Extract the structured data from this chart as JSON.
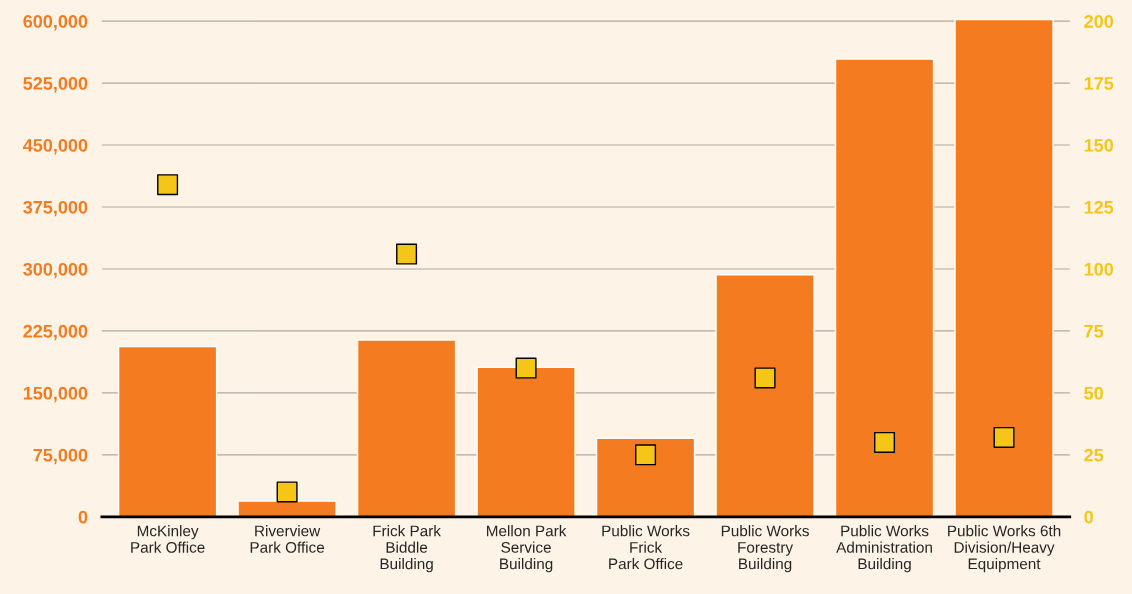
{
  "chart_data": {
    "type": "bar",
    "categories": [
      "McKinley\nPark Office",
      "Riverview\nPark Office",
      "Frick Park\nBiddle\nBuilding",
      "Mellon Park\nService\nBuilding",
      "Public Works\nFrick\nPark Office",
      "Public Works\nForestry\nBuilding",
      "Public Works\nAdministration\nBuilding",
      "Public Works 6th\nDivision/Heavy\nEquipment"
    ],
    "series": [
      {
        "color": "#f47b20",
        "values": [
          206000,
          19000,
          214000,
          181000,
          95000,
          293000,
          554000,
          602000
        ]
      },
      {
        "type": "scatter",
        "axis": "y2",
        "color": "#f5c518",
        "values": [
          134,
          10,
          106,
          60,
          25,
          56,
          30,
          32
        ]
      }
    ],
    "ylim": [
      0,
      604000
    ],
    "yticks": [
      {
        "value": 0,
        "label": "0"
      },
      {
        "value": 75000,
        "label": "75,000"
      },
      {
        "value": 150000,
        "label": "150,000"
      },
      {
        "value": 225000,
        "label": "225,000"
      },
      {
        "value": 300000,
        "label": "300,000"
      },
      {
        "value": 375000,
        "label": "375,000"
      },
      {
        "value": 450000,
        "label": "450,000"
      },
      {
        "value": 525000,
        "label": "525,000"
      },
      {
        "value": 600000,
        "label": "600,000"
      }
    ],
    "y2lim": [
      0,
      201.33
    ],
    "y2ticks": [
      0,
      25,
      50,
      75,
      100,
      125,
      150,
      175,
      200
    ],
    "grid": "y",
    "marker": "square",
    "legend": false
  }
}
